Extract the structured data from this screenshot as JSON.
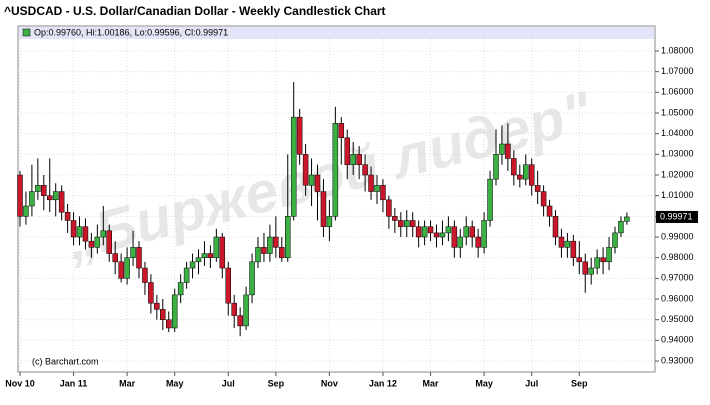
{
  "chart_data": {
    "type": "candlestick",
    "title": "^USDCAD - U.S. Dollar/Canadian Dollar - Weekly Candlestick Chart",
    "legend_text": "Op:0.99760, Hi:1.00186, Lo:0.99596, Cl:0.99971",
    "credit": "(c) Barchart.com",
    "watermark": "„Биржевой лидер\"",
    "up_color": "#3cb043",
    "down_color": "#c8182a",
    "grid": true,
    "categories": [
      "Nov 10",
      null,
      null,
      null,
      null,
      null,
      null,
      null,
      null,
      "Jan 11",
      null,
      null,
      null,
      null,
      null,
      null,
      null,
      null,
      "Mar",
      null,
      null,
      null,
      null,
      null,
      null,
      null,
      "May",
      null,
      null,
      null,
      null,
      null,
      null,
      null,
      null,
      "Jul",
      null,
      null,
      null,
      null,
      null,
      null,
      null,
      "Sep",
      null,
      null,
      null,
      null,
      null,
      null,
      null,
      null,
      "Nov",
      null,
      null,
      null,
      null,
      null,
      null,
      null,
      null,
      "Jan 12",
      null,
      null,
      null,
      null,
      null,
      null,
      null,
      "Mar",
      null,
      null,
      null,
      null,
      null,
      null,
      null,
      null,
      "May",
      null,
      null,
      null,
      null,
      null,
      null,
      null,
      "Jul",
      null,
      null,
      null,
      null,
      null,
      null,
      null,
      "Sep",
      null,
      null,
      null,
      null,
      null,
      null,
      null,
      null
    ],
    "series": [
      {
        "name": "USDCAD",
        "open": [
          1.02,
          1.0,
          1.005,
          1.012,
          1.015,
          1.01,
          1.008,
          1.012,
          1.002,
          0.998,
          0.99,
          0.995,
          0.988,
          0.985,
          0.99,
          0.993,
          0.982,
          0.978,
          0.97,
          0.98,
          0.985,
          0.975,
          0.968,
          0.958,
          0.955,
          0.95,
          0.946,
          0.962,
          0.968,
          0.975,
          0.978,
          0.98,
          0.982,
          0.98,
          0.99,
          0.975,
          0.958,
          0.952,
          0.947,
          0.962,
          0.978,
          0.985,
          0.982,
          0.99,
          0.985,
          0.98,
          1.0,
          1.048,
          1.03,
          1.015,
          1.02,
          1.012,
          0.995,
          1.0,
          1.045,
          1.038,
          1.025,
          1.03,
          1.025,
          1.02,
          1.012,
          1.015,
          1.008,
          1.0,
          0.998,
          0.995,
          0.998,
          0.995,
          0.99,
          0.995,
          0.992,
          0.99,
          0.992,
          0.995,
          0.985,
          0.99,
          0.995,
          0.99,
          0.985,
          0.998,
          1.018,
          1.03,
          1.035,
          1.028,
          1.02,
          1.018,
          1.025,
          1.015,
          1.012,
          1.005,
          1.0,
          0.99,
          0.985,
          0.988,
          0.98,
          0.978,
          0.972,
          0.975,
          0.98,
          0.978,
          0.985,
          0.992,
          0.9976
        ],
        "high": [
          1.022,
          1.012,
          1.025,
          1.028,
          1.02,
          1.028,
          1.016,
          1.015,
          1.006,
          1.002,
          1.0,
          0.999,
          0.992,
          0.996,
          1.005,
          0.996,
          0.988,
          0.982,
          0.985,
          0.993,
          0.988,
          0.978,
          0.972,
          0.962,
          0.96,
          0.954,
          0.965,
          0.972,
          0.978,
          0.982,
          0.984,
          0.988,
          0.986,
          0.994,
          0.992,
          0.978,
          0.962,
          0.956,
          0.966,
          0.982,
          0.99,
          0.992,
          0.996,
          1.0,
          0.99,
          1.03,
          1.065,
          1.052,
          1.035,
          1.028,
          1.025,
          1.018,
          1.008,
          1.053,
          1.048,
          1.042,
          1.036,
          1.034,
          1.03,
          1.024,
          1.02,
          1.018,
          1.01,
          1.004,
          1.002,
          1.003,
          1.002,
          0.998,
          0.998,
          0.998,
          0.996,
          0.998,
          1.0,
          0.998,
          0.994,
          1.0,
          0.998,
          0.994,
          1.002,
          1.022,
          1.042,
          1.044,
          1.045,
          1.032,
          1.025,
          1.03,
          1.028,
          1.022,
          1.015,
          1.008,
          1.003,
          0.994,
          0.992,
          0.991,
          0.988,
          0.982,
          0.98,
          0.984,
          0.985,
          0.99,
          0.995,
          1.0,
          1.00186
        ],
        "low": [
          0.995,
          0.996,
          1.0,
          1.008,
          1.003,
          1.002,
          1.0,
          0.998,
          0.992,
          0.986,
          0.986,
          0.984,
          0.98,
          0.982,
          0.986,
          0.978,
          0.972,
          0.968,
          0.967,
          0.976,
          0.97,
          0.962,
          0.953,
          0.95,
          0.945,
          0.944,
          0.944,
          0.958,
          0.965,
          0.97,
          0.972,
          0.976,
          0.975,
          0.978,
          0.97,
          0.952,
          0.946,
          0.942,
          0.945,
          0.958,
          0.975,
          0.978,
          0.978,
          0.98,
          0.978,
          0.978,
          0.998,
          1.025,
          1.01,
          1.005,
          0.998,
          0.99,
          0.988,
          0.998,
          1.025,
          1.018,
          1.02,
          1.018,
          1.012,
          1.008,
          1.006,
          1.002,
          0.994,
          0.992,
          0.99,
          0.99,
          0.99,
          0.985,
          0.986,
          0.988,
          0.985,
          0.986,
          0.988,
          0.98,
          0.98,
          0.986,
          0.985,
          0.98,
          0.982,
          0.995,
          1.015,
          1.025,
          1.022,
          1.015,
          1.014,
          1.015,
          1.01,
          1.006,
          1.0,
          0.995,
          0.986,
          0.98,
          0.98,
          0.976,
          0.972,
          0.963,
          0.967,
          0.972,
          0.972,
          0.974,
          0.982,
          0.99,
          0.99596
        ],
        "close": [
          1.0,
          1.005,
          1.012,
          1.015,
          1.01,
          1.008,
          1.012,
          1.002,
          0.998,
          0.99,
          0.995,
          0.988,
          0.985,
          0.99,
          0.993,
          0.982,
          0.978,
          0.97,
          0.98,
          0.985,
          0.975,
          0.968,
          0.958,
          0.955,
          0.95,
          0.946,
          0.962,
          0.968,
          0.975,
          0.978,
          0.98,
          0.982,
          0.98,
          0.99,
          0.975,
          0.958,
          0.952,
          0.947,
          0.962,
          0.978,
          0.985,
          0.982,
          0.99,
          0.985,
          0.98,
          1.0,
          1.048,
          1.03,
          1.015,
          1.02,
          1.012,
          0.995,
          1.0,
          1.045,
          1.038,
          1.025,
          1.03,
          1.025,
          1.02,
          1.012,
          1.015,
          1.008,
          1.0,
          0.998,
          0.995,
          0.998,
          0.995,
          0.99,
          0.995,
          0.992,
          0.99,
          0.992,
          0.995,
          0.985,
          0.99,
          0.995,
          0.99,
          0.985,
          0.998,
          1.018,
          1.03,
          1.035,
          1.028,
          1.02,
          1.018,
          1.025,
          1.015,
          1.012,
          1.005,
          1.0,
          0.99,
          0.985,
          0.988,
          0.98,
          0.978,
          0.972,
          0.975,
          0.98,
          0.978,
          0.985,
          0.992,
          0.9976,
          0.99971
        ]
      }
    ],
    "last_price": {
      "value": 0.99971,
      "label": "0.99971"
    },
    "ylim": [
      0.9247,
      1.0858
    ],
    "yticks": [
      {
        "value": 0.93,
        "label": "0.93000"
      },
      {
        "value": 0.94,
        "label": "0.94000"
      },
      {
        "value": 0.95,
        "label": "0.95000"
      },
      {
        "value": 0.96,
        "label": "0.96000"
      },
      {
        "value": 0.97,
        "label": "0.97000"
      },
      {
        "value": 0.98,
        "label": "0.98000"
      },
      {
        "value": 0.99,
        "label": "0.99000"
      },
      {
        "value": 1.0,
        "label": "1.00000"
      },
      {
        "value": 1.01,
        "label": "1.01000"
      },
      {
        "value": 1.02,
        "label": "1.02000"
      },
      {
        "value": 1.03,
        "label": "1.03000"
      },
      {
        "value": 1.04,
        "label": "1.04000"
      },
      {
        "value": 1.05,
        "label": "1.05000"
      },
      {
        "value": 1.06,
        "label": "1.06000"
      },
      {
        "value": 1.07,
        "label": "1.07000"
      },
      {
        "value": 1.08,
        "label": "1.08000"
      }
    ]
  }
}
